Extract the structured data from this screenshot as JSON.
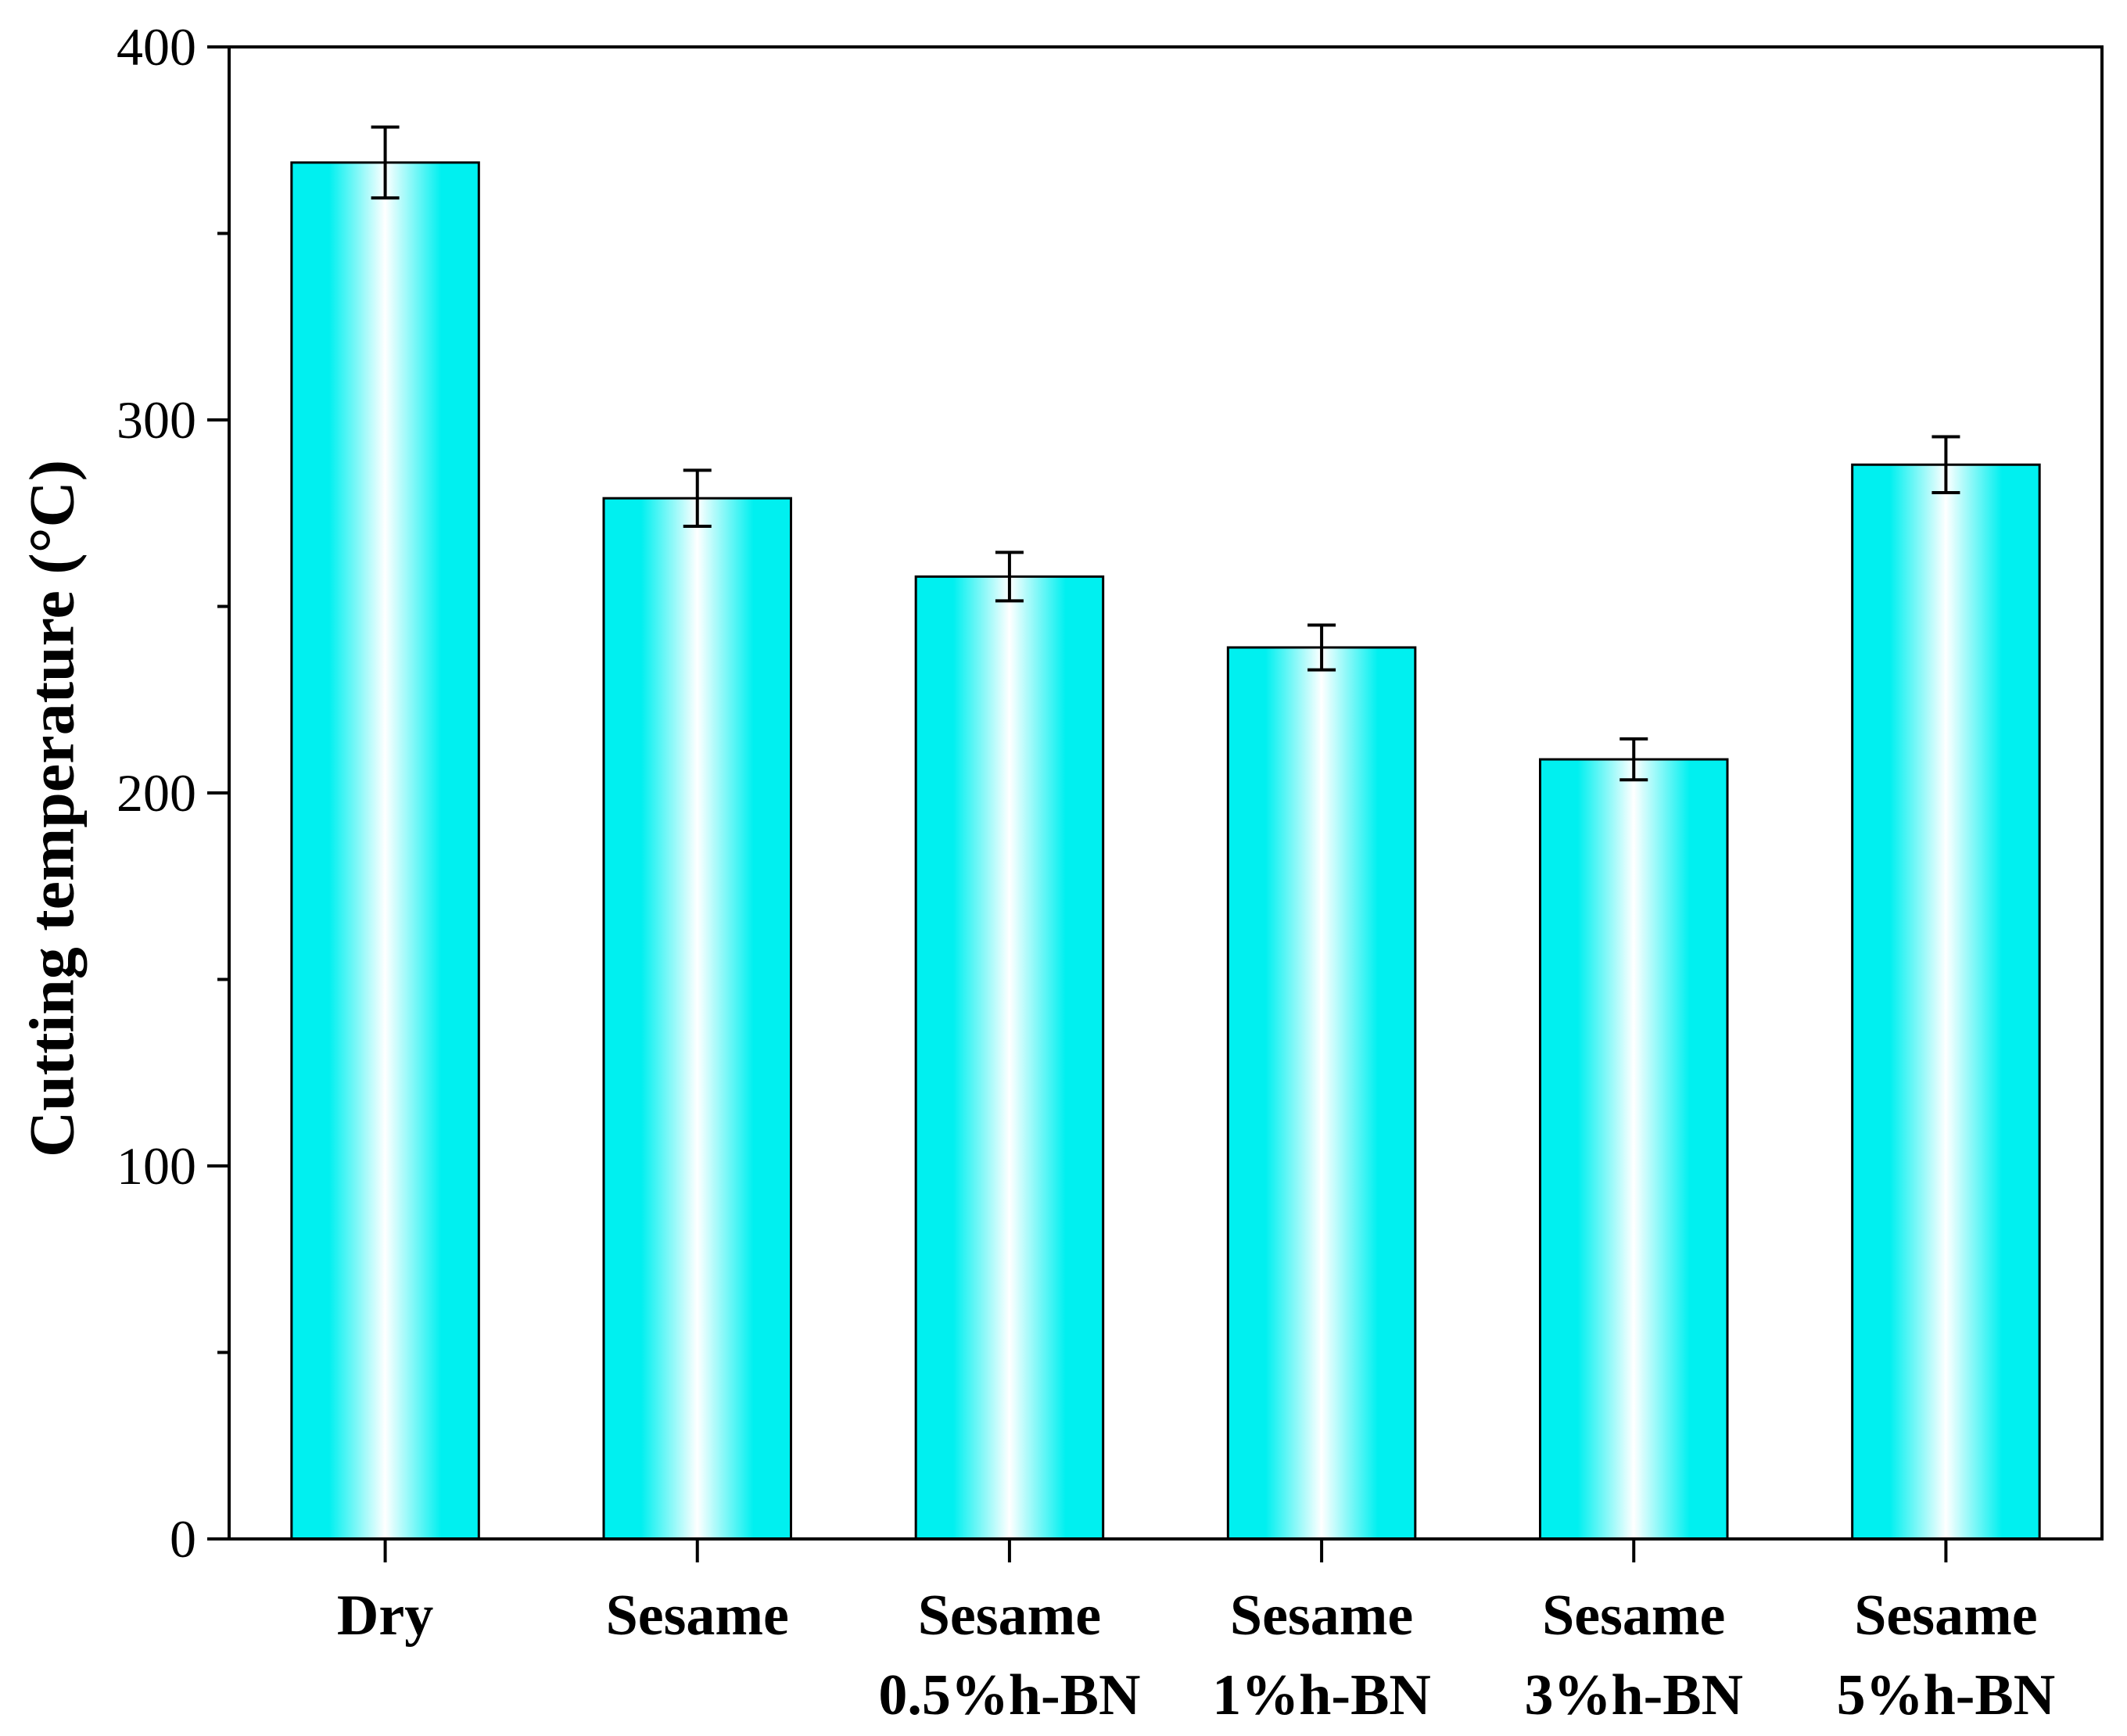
{
  "chart_data": {
    "type": "bar",
    "title": "",
    "xlabel": "",
    "ylabel": "Cutting temperature (°C)",
    "ylim": [
      0,
      400
    ],
    "yticks": [
      0,
      100,
      200,
      300,
      400
    ],
    "yminor_ticks": [
      50,
      150,
      250,
      350
    ],
    "grid": false,
    "categories": [
      [
        "Dry"
      ],
      [
        "Sesame"
      ],
      [
        "Sesame",
        "0.5%h-BN"
      ],
      [
        "Sesame",
        "1%h-BN"
      ],
      [
        "Sesame",
        "3%h-BN"
      ],
      [
        "Sesame",
        "5%h-BN"
      ]
    ],
    "series": [
      {
        "name": "Cutting temperature",
        "values": [
          369,
          279,
          258,
          239,
          209,
          288
        ],
        "errors": [
          9.5,
          7.5,
          6.5,
          6,
          5.5,
          7.5
        ]
      }
    ],
    "colors": {
      "bar_edge": "#00f0f0",
      "bar_center": "#ffffff",
      "outline": "#000000"
    }
  }
}
